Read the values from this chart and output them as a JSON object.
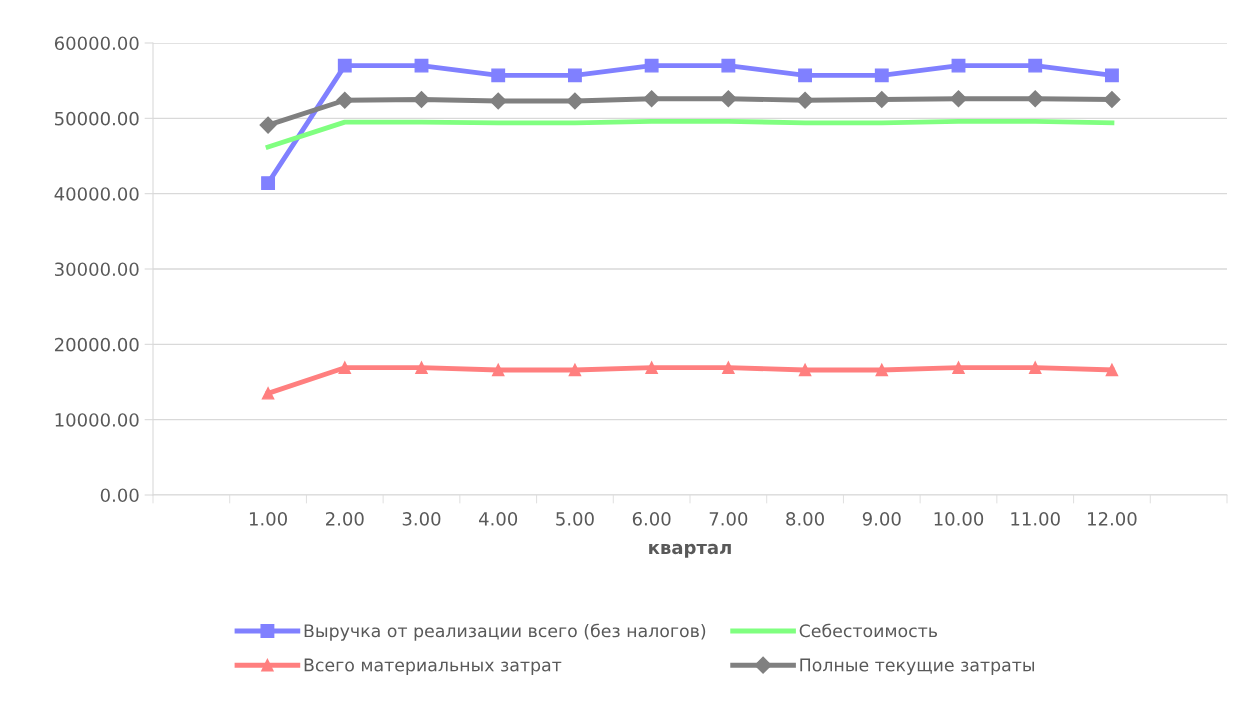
{
  "chart_data": {
    "type": "line",
    "xlabel": "квартал",
    "categories": [
      null,
      "1.00",
      "2.00",
      "3.00",
      "4.00",
      "5.00",
      "6.00",
      "7.00",
      "8.00",
      "9.00",
      "10.00",
      "11.00",
      "12.00",
      null
    ],
    "ylim": [
      0,
      60000
    ],
    "yticks": [
      {
        "value": 0,
        "label": "0.00"
      },
      {
        "value": 10000,
        "label": "10000.00"
      },
      {
        "value": 20000,
        "label": "20000.00"
      },
      {
        "value": 30000,
        "label": "30000.00"
      },
      {
        "value": 40000,
        "label": "40000.00"
      },
      {
        "value": 50000,
        "label": "50000.00"
      },
      {
        "value": 60000,
        "label": "60000.00"
      }
    ],
    "grid": "y",
    "legend": "bottom",
    "series": [
      {
        "name": "Выручка от реализации всего (без налогов)",
        "color": "#8080ff",
        "marker": "square",
        "values": [
          null,
          41400,
          57000,
          57000,
          55700,
          55700,
          57000,
          57000,
          55700,
          55700,
          57000,
          57000,
          55700,
          null
        ]
      },
      {
        "name": "Всего материальных затрат",
        "color": "#ff7f7f",
        "marker": "triangle",
        "values": [
          null,
          13500,
          16900,
          16900,
          16600,
          16600,
          16900,
          16900,
          16600,
          16600,
          16900,
          16900,
          16600,
          null
        ]
      },
      {
        "name": "Себестоимость",
        "color": "#80ff80",
        "marker": "none",
        "values": [
          null,
          46200,
          49500,
          49500,
          49400,
          49400,
          49600,
          49600,
          49400,
          49400,
          49600,
          49600,
          49400,
          null
        ]
      },
      {
        "name": "Полные текущие затраты",
        "color": "#808080",
        "marker": "diamond",
        "values": [
          null,
          49100,
          52400,
          52500,
          52300,
          52300,
          52600,
          52600,
          52400,
          52500,
          52600,
          52600,
          52500,
          null
        ]
      }
    ]
  }
}
